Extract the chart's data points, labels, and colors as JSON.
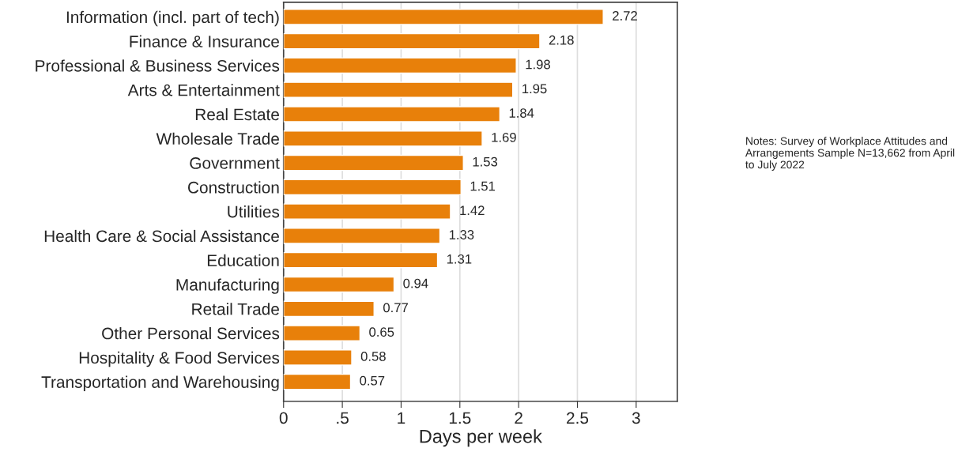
{
  "chart_data": {
    "type": "bar",
    "orientation": "horizontal",
    "xlabel": "Days per week",
    "categories": [
      "Information (incl. part of tech)",
      "Finance & Insurance",
      "Professional & Business Services",
      "Arts & Entertainment",
      "Real Estate",
      "Wholesale Trade",
      "Government",
      "Construction",
      "Utilities",
      "Health Care & Social Assistance",
      "Education",
      "Manufacturing",
      "Retail Trade",
      "Other Personal Services",
      "Hospitality & Food Services",
      "Transportation and Warehousing"
    ],
    "values": [
      2.72,
      2.18,
      1.98,
      1.95,
      1.84,
      1.69,
      1.53,
      1.51,
      1.42,
      1.33,
      1.31,
      0.94,
      0.77,
      0.65,
      0.58,
      0.57
    ],
    "color": "#e8800a",
    "data_labels": true,
    "xlim": [
      0,
      3.35
    ],
    "xticks": [
      0,
      {
        "value": 0.5,
        "label": ".5"
      },
      1,
      1.5,
      2,
      2.5,
      3
    ],
    "grid": "x",
    "annotations": [
      "Notes: Survey of Workplace Attitudes and Arrangements Sample N=13,662 from April to July 2022"
    ]
  }
}
